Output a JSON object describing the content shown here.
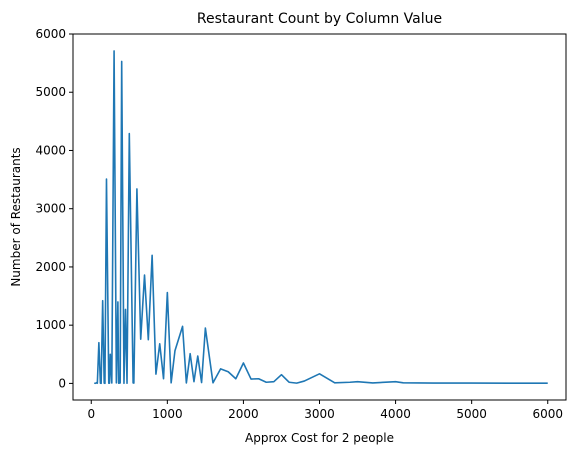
{
  "chart_data": {
    "type": "line",
    "title": "Restaurant Count by Column Value",
    "xlabel": "Approx Cost for 2 people",
    "ylabel": "Number of Restaurants",
    "xlim": [
      -240,
      6240
    ],
    "ylim": [
      -285,
      6000
    ],
    "xticks": [
      0,
      1000,
      2000,
      3000,
      4000,
      5000,
      6000
    ],
    "xtick_labels": [
      "0",
      "1000",
      "2000",
      "3000",
      "4000",
      "5000",
      "6000"
    ],
    "yticks": [
      0,
      1000,
      2000,
      3000,
      4000,
      5000,
      6000
    ],
    "ytick_labels": [
      "0",
      "1000",
      "2000",
      "3000",
      "4000",
      "5000",
      "6000"
    ],
    "grid": false,
    "line_color": "#1f77b4",
    "series": [
      {
        "x": [
          40,
          50,
          60,
          70,
          80,
          100,
          120,
          130,
          150,
          170,
          180,
          200,
          230,
          240,
          250,
          270,
          300,
          330,
          350,
          360,
          380,
          400,
          430,
          450,
          470,
          500,
          550,
          560,
          600,
          650,
          700,
          750,
          800,
          850,
          900,
          950,
          1000,
          1050,
          1100,
          1200,
          1250,
          1300,
          1350,
          1400,
          1450,
          1500,
          1600,
          1700,
          1800,
          1900,
          2000,
          2100,
          2200,
          2300,
          2400,
          2500,
          2600,
          2700,
          2800,
          3000,
          3200,
          3400,
          3500,
          3700,
          4000,
          4100,
          4500,
          5000,
          6000
        ],
        "y": [
          8,
          2,
          5,
          12,
          3,
          700,
          3,
          1,
          1420,
          5,
          2,
          3510,
          4,
          3,
          500,
          8,
          5710,
          10,
          1400,
          3,
          8,
          5530,
          2,
          1270,
          3,
          4290,
          10,
          5,
          3340,
          760,
          1860,
          750,
          2200,
          160,
          680,
          80,
          1560,
          10,
          560,
          980,
          8,
          510,
          30,
          470,
          15,
          950,
          10,
          250,
          200,
          80,
          350,
          75,
          80,
          20,
          30,
          150,
          20,
          5,
          40,
          165,
          10,
          20,
          30,
          8,
          30,
          10,
          5,
          5,
          3
        ]
      }
    ]
  }
}
